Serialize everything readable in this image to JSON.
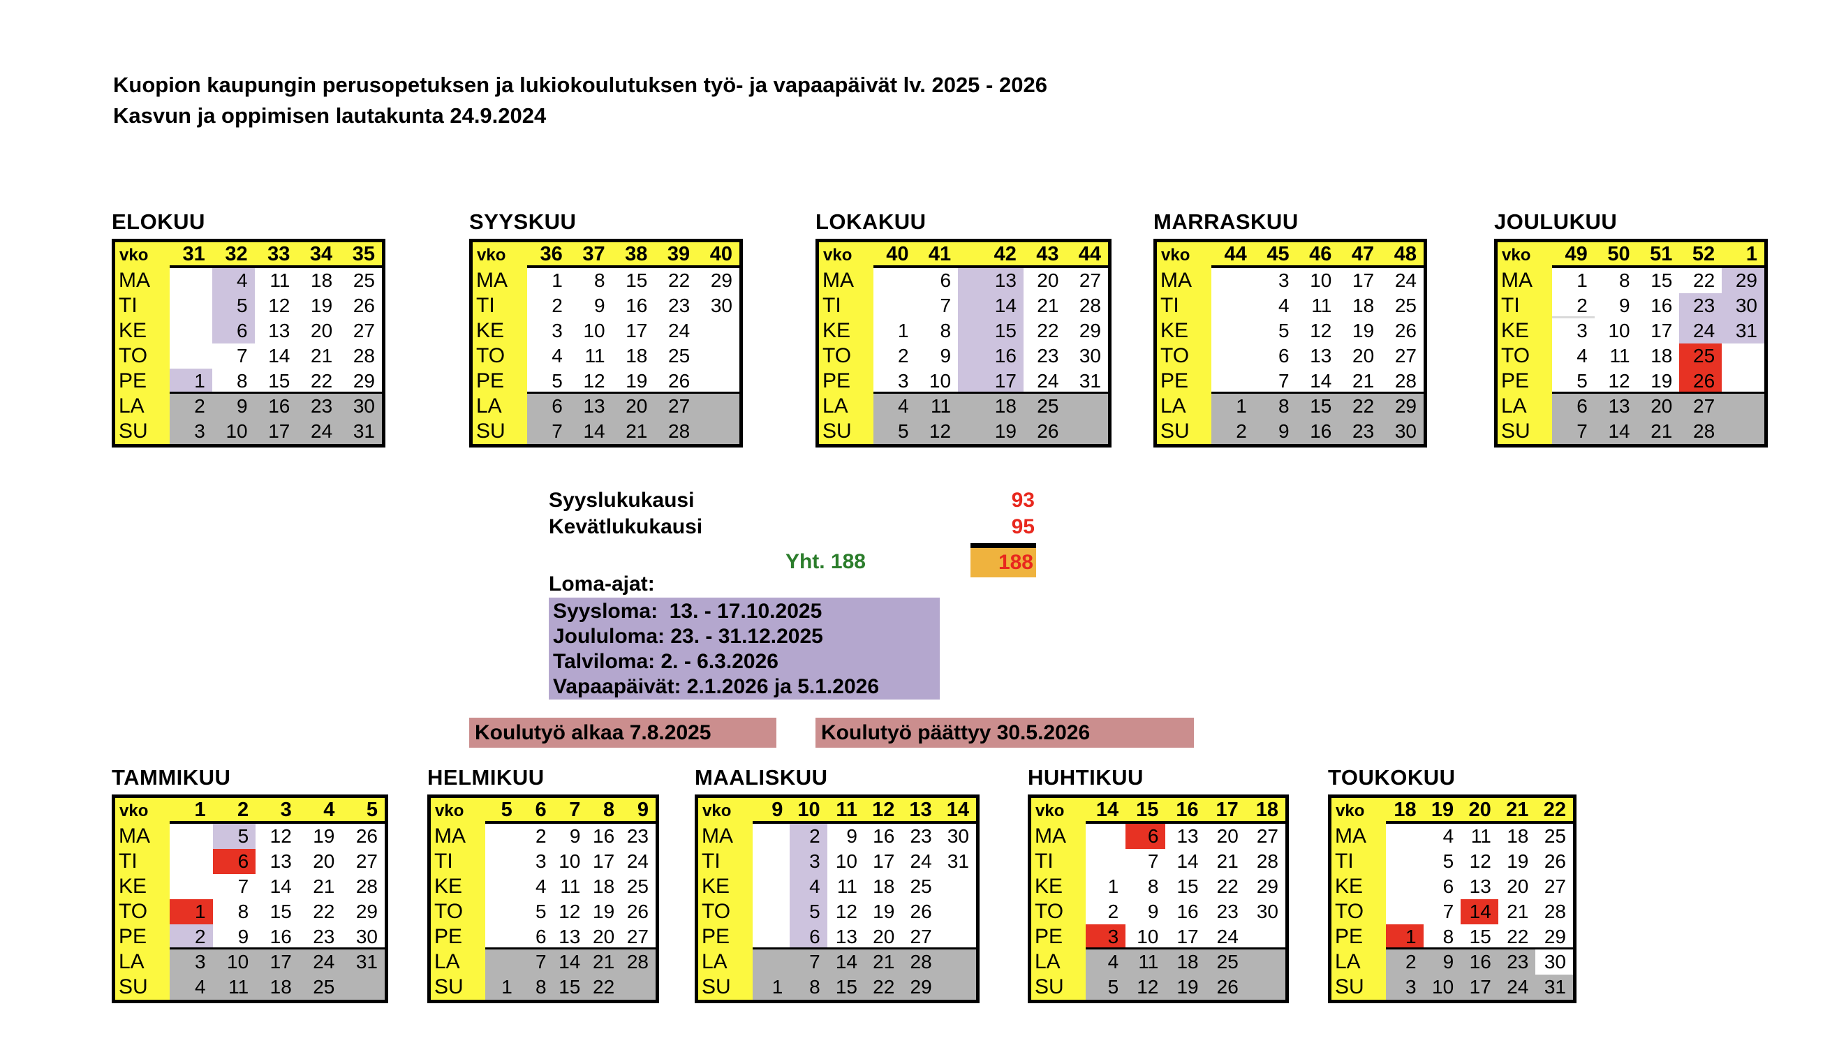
{
  "header": {
    "title": "Kuopion kaupungin perusopetuksen ja lukiokoulutuksen työ- ja vapaapäivät lv. 2025 - 2026",
    "subtitle": "Kasvun ja oppimisen lautakunta 24.9.2024"
  },
  "summary": {
    "fall_label": "Syyslukukausi",
    "fall_days": "93",
    "spring_label": "Kevätlukukausi",
    "spring_days": "95",
    "total_label": "Yht. 188",
    "total_days": "188"
  },
  "loma": {
    "title": "Loma-ajat:",
    "lines": [
      "Syysloma:  13. - 17.10.2025",
      "Joululoma: 23. - 31.12.2025",
      "Talviloma: 2. - 6.3.2026",
      "Vapaapäivät: 2.1.2026 ja 5.1.2026"
    ]
  },
  "banners": {
    "school_starts": "Koulutyö alkaa 7.8.2025",
    "school_ends": "Koulutyö päättyy 30.5.2026"
  },
  "colors": {
    "yellow": "#FCF840",
    "weekend": "#B4B4B4",
    "vacation": "#CDC3DE",
    "holiday": "#E73223",
    "total-box": "#EFB33E",
    "value-red": "#E8281E",
    "total-green": "#2B7D2B",
    "banner": "#CB8E8E",
    "loma-box": "#B4A7CE"
  },
  "calendar": {
    "week_header_label": "vko",
    "day_labels": [
      "MA",
      "TI",
      "KE",
      "TO",
      "PE",
      "LA",
      "SU"
    ],
    "months": [
      {
        "name": "ELOKUU",
        "weeks": [
          "31",
          "32",
          "33",
          "34",
          "35"
        ],
        "rows": [
          {
            "day": "MA",
            "dates": [
              "",
              "4",
              "11",
              "18",
              "25"
            ]
          },
          {
            "day": "TI",
            "dates": [
              "",
              "5",
              "12",
              "19",
              "26"
            ]
          },
          {
            "day": "KE",
            "dates": [
              "",
              "6",
              "13",
              "20",
              "27"
            ]
          },
          {
            "day": "TO",
            "dates": [
              "",
              "7",
              "14",
              "21",
              "28"
            ]
          },
          {
            "day": "PE",
            "dates": [
              "1",
              "8",
              "15",
              "22",
              "29"
            ]
          },
          {
            "day": "LA",
            "dates": [
              "2",
              "9",
              "16",
              "23",
              "30"
            ]
          },
          {
            "day": "SU",
            "dates": [
              "3",
              "10",
              "17",
              "24",
              "31"
            ]
          }
        ],
        "marks": [
          {
            "day": "PE",
            "col": 0,
            "type": "vacation"
          },
          {
            "day": "MA",
            "col": 1,
            "type": "vacation"
          },
          {
            "day": "TI",
            "col": 1,
            "type": "vacation"
          },
          {
            "day": "KE",
            "col": 1,
            "type": "vacation"
          }
        ]
      },
      {
        "name": "SYYSKUU",
        "weeks": [
          "36",
          "37",
          "38",
          "39",
          "40"
        ],
        "rows": [
          {
            "day": "MA",
            "dates": [
              "1",
              "8",
              "15",
              "22",
              "29"
            ]
          },
          {
            "day": "TI",
            "dates": [
              "2",
              "9",
              "16",
              "23",
              "30"
            ]
          },
          {
            "day": "KE",
            "dates": [
              "3",
              "10",
              "17",
              "24",
              ""
            ]
          },
          {
            "day": "TO",
            "dates": [
              "4",
              "11",
              "18",
              "25",
              ""
            ]
          },
          {
            "day": "PE",
            "dates": [
              "5",
              "12",
              "19",
              "26",
              ""
            ]
          },
          {
            "day": "LA",
            "dates": [
              "6",
              "13",
              "20",
              "27",
              ""
            ]
          },
          {
            "day": "SU",
            "dates": [
              "7",
              "14",
              "21",
              "28",
              ""
            ]
          }
        ],
        "marks": []
      },
      {
        "name": "LOKAKUU",
        "weeks": [
          "40",
          "41",
          "42",
          "43",
          "44"
        ],
        "rows": [
          {
            "day": "MA",
            "dates": [
              "",
              "6",
              "13",
              "20",
              "27"
            ]
          },
          {
            "day": "TI",
            "dates": [
              "",
              "7",
              "14",
              "21",
              "28"
            ]
          },
          {
            "day": "KE",
            "dates": [
              "1",
              "8",
              "15",
              "22",
              "29"
            ]
          },
          {
            "day": "TO",
            "dates": [
              "2",
              "9",
              "16",
              "23",
              "30"
            ]
          },
          {
            "day": "PE",
            "dates": [
              "3",
              "10",
              "17",
              "24",
              "31"
            ]
          },
          {
            "day": "LA",
            "dates": [
              "4",
              "11",
              "18",
              "25",
              ""
            ]
          },
          {
            "day": "SU",
            "dates": [
              "5",
              "12",
              "19",
              "26",
              ""
            ]
          }
        ],
        "marks": [
          {
            "day": "MA",
            "col": 2,
            "type": "vacation"
          },
          {
            "day": "TI",
            "col": 2,
            "type": "vacation"
          },
          {
            "day": "KE",
            "col": 2,
            "type": "vacation"
          },
          {
            "day": "TO",
            "col": 2,
            "type": "vacation"
          },
          {
            "day": "PE",
            "col": 2,
            "type": "vacation"
          }
        ]
      },
      {
        "name": "MARRASKUU",
        "weeks": [
          "44",
          "45",
          "46",
          "47",
          "48"
        ],
        "rows": [
          {
            "day": "MA",
            "dates": [
              "",
              "3",
              "10",
              "17",
              "24"
            ]
          },
          {
            "day": "TI",
            "dates": [
              "",
              "4",
              "11",
              "18",
              "25"
            ]
          },
          {
            "day": "KE",
            "dates": [
              "",
              "5",
              "12",
              "19",
              "26"
            ]
          },
          {
            "day": "TO",
            "dates": [
              "",
              "6",
              "13",
              "20",
              "27"
            ]
          },
          {
            "day": "PE",
            "dates": [
              "",
              "7",
              "14",
              "21",
              "28"
            ]
          },
          {
            "day": "LA",
            "dates": [
              "1",
              "8",
              "15",
              "22",
              "29"
            ]
          },
          {
            "day": "SU",
            "dates": [
              "2",
              "9",
              "16",
              "23",
              "30"
            ]
          }
        ],
        "marks": []
      },
      {
        "name": "JOULUKUU",
        "weeks": [
          "49",
          "50",
          "51",
          "52",
          "1"
        ],
        "rows": [
          {
            "day": "MA",
            "dates": [
              "1",
              "8",
              "15",
              "22",
              "29"
            ]
          },
          {
            "day": "TI",
            "dates": [
              "2",
              "9",
              "16",
              "23",
              "30"
            ]
          },
          {
            "day": "KE",
            "dates": [
              "3",
              "10",
              "17",
              "24",
              "31"
            ]
          },
          {
            "day": "TO",
            "dates": [
              "4",
              "11",
              "18",
              "25",
              ""
            ]
          },
          {
            "day": "PE",
            "dates": [
              "5",
              "12",
              "19",
              "26",
              ""
            ]
          },
          {
            "day": "LA",
            "dates": [
              "6",
              "13",
              "20",
              "27",
              ""
            ]
          },
          {
            "day": "SU",
            "dates": [
              "7",
              "14",
              "21",
              "28",
              ""
            ]
          }
        ],
        "marks": [
          {
            "day": "TI",
            "col": 0,
            "type": "underline"
          },
          {
            "day": "TI",
            "col": 3,
            "type": "vacation"
          },
          {
            "day": "KE",
            "col": 3,
            "type": "vacation"
          },
          {
            "day": "MA",
            "col": 4,
            "type": "vacation"
          },
          {
            "day": "TI",
            "col": 4,
            "type": "vacation"
          },
          {
            "day": "KE",
            "col": 4,
            "type": "vacation"
          },
          {
            "day": "TO",
            "col": 3,
            "type": "holiday"
          },
          {
            "day": "PE",
            "col": 3,
            "type": "holiday"
          }
        ]
      },
      {
        "name": "TAMMIKUU",
        "weeks": [
          "1",
          "2",
          "3",
          "4",
          "5"
        ],
        "rows": [
          {
            "day": "MA",
            "dates": [
              "",
              "5",
              "12",
              "19",
              "26"
            ]
          },
          {
            "day": "TI",
            "dates": [
              "",
              "6",
              "13",
              "20",
              "27"
            ]
          },
          {
            "day": "KE",
            "dates": [
              "",
              "7",
              "14",
              "21",
              "28"
            ]
          },
          {
            "day": "TO",
            "dates": [
              "1",
              "8",
              "15",
              "22",
              "29"
            ]
          },
          {
            "day": "PE",
            "dates": [
              "2",
              "9",
              "16",
              "23",
              "30"
            ]
          },
          {
            "day": "LA",
            "dates": [
              "3",
              "10",
              "17",
              "24",
              "31"
            ]
          },
          {
            "day": "SU",
            "dates": [
              "4",
              "11",
              "18",
              "25",
              ""
            ]
          }
        ],
        "marks": [
          {
            "day": "MA",
            "col": 1,
            "type": "vacation"
          },
          {
            "day": "TI",
            "col": 1,
            "type": "holiday"
          },
          {
            "day": "TO",
            "col": 0,
            "type": "holiday"
          },
          {
            "day": "PE",
            "col": 0,
            "type": "vacation"
          }
        ]
      },
      {
        "name": "HELMIKUU",
        "weeks": [
          "5",
          "6",
          "7",
          "8",
          "9"
        ],
        "rows": [
          {
            "day": "MA",
            "dates": [
              "",
              "2",
              "9",
              "16",
              "23"
            ]
          },
          {
            "day": "TI",
            "dates": [
              "",
              "3",
              "10",
              "17",
              "24"
            ]
          },
          {
            "day": "KE",
            "dates": [
              "",
              "4",
              "11",
              "18",
              "25"
            ]
          },
          {
            "day": "TO",
            "dates": [
              "",
              "5",
              "12",
              "19",
              "26"
            ]
          },
          {
            "day": "PE",
            "dates": [
              "",
              "6",
              "13",
              "20",
              "27"
            ]
          },
          {
            "day": "LA",
            "dates": [
              "",
              "7",
              "14",
              "21",
              "28"
            ]
          },
          {
            "day": "SU",
            "dates": [
              "1",
              "8",
              "15",
              "22",
              ""
            ]
          }
        ],
        "marks": []
      },
      {
        "name": "MAALISKUU",
        "weeks": [
          "9",
          "10",
          "11",
          "12",
          "13",
          "14"
        ],
        "rows": [
          {
            "day": "MA",
            "dates": [
              "",
              "2",
              "9",
              "16",
              "23",
              "30"
            ]
          },
          {
            "day": "TI",
            "dates": [
              "",
              "3",
              "10",
              "17",
              "24",
              "31"
            ]
          },
          {
            "day": "KE",
            "dates": [
              "",
              "4",
              "11",
              "18",
              "25",
              ""
            ]
          },
          {
            "day": "TO",
            "dates": [
              "",
              "5",
              "12",
              "19",
              "26",
              ""
            ]
          },
          {
            "day": "PE",
            "dates": [
              "",
              "6",
              "13",
              "20",
              "27",
              ""
            ]
          },
          {
            "day": "LA",
            "dates": [
              "",
              "7",
              "14",
              "21",
              "28",
              ""
            ]
          },
          {
            "day": "SU",
            "dates": [
              "1",
              "8",
              "15",
              "22",
              "29",
              ""
            ]
          }
        ],
        "marks": [
          {
            "day": "MA",
            "col": 1,
            "type": "vacation"
          },
          {
            "day": "TI",
            "col": 1,
            "type": "vacation"
          },
          {
            "day": "KE",
            "col": 1,
            "type": "vacation"
          },
          {
            "day": "TO",
            "col": 1,
            "type": "vacation"
          },
          {
            "day": "PE",
            "col": 1,
            "type": "vacation"
          }
        ]
      },
      {
        "name": "HUHTIKUU",
        "weeks": [
          "14",
          "15",
          "16",
          "17",
          "18"
        ],
        "rows": [
          {
            "day": "MA",
            "dates": [
              "",
              "6",
              "13",
              "20",
              "27"
            ]
          },
          {
            "day": "TI",
            "dates": [
              "",
              "7",
              "14",
              "21",
              "28"
            ]
          },
          {
            "day": "KE",
            "dates": [
              "1",
              "8",
              "15",
              "22",
              "29"
            ]
          },
          {
            "day": "TO",
            "dates": [
              "2",
              "9",
              "16",
              "23",
              "30"
            ]
          },
          {
            "day": "PE",
            "dates": [
              "3",
              "10",
              "17",
              "24",
              ""
            ]
          },
          {
            "day": "LA",
            "dates": [
              "4",
              "11",
              "18",
              "25",
              ""
            ]
          },
          {
            "day": "SU",
            "dates": [
              "5",
              "12",
              "19",
              "26",
              ""
            ]
          }
        ],
        "marks": [
          {
            "day": "MA",
            "col": 1,
            "type": "holiday"
          },
          {
            "day": "PE",
            "col": 0,
            "type": "holiday"
          }
        ]
      },
      {
        "name": "TOUKOKUU",
        "weeks": [
          "18",
          "19",
          "20",
          "21",
          "22"
        ],
        "rows": [
          {
            "day": "MA",
            "dates": [
              "",
              "4",
              "11",
              "18",
              "25"
            ]
          },
          {
            "day": "TI",
            "dates": [
              "",
              "5",
              "12",
              "19",
              "26"
            ]
          },
          {
            "day": "KE",
            "dates": [
              "",
              "6",
              "13",
              "20",
              "27"
            ]
          },
          {
            "day": "TO",
            "dates": [
              "",
              "7",
              "14",
              "21",
              "28"
            ]
          },
          {
            "day": "PE",
            "dates": [
              "1",
              "8",
              "15",
              "22",
              "29"
            ]
          },
          {
            "day": "LA",
            "dates": [
              "2",
              "9",
              "16",
              "23",
              "30"
            ]
          },
          {
            "day": "SU",
            "dates": [
              "3",
              "10",
              "17",
              "24",
              "31"
            ]
          }
        ],
        "marks": [
          {
            "day": "TO",
            "col": 2,
            "type": "holiday"
          },
          {
            "day": "PE",
            "col": 0,
            "type": "holiday"
          },
          {
            "day": "LA",
            "col": 4,
            "type": "schoolday"
          }
        ]
      }
    ]
  }
}
